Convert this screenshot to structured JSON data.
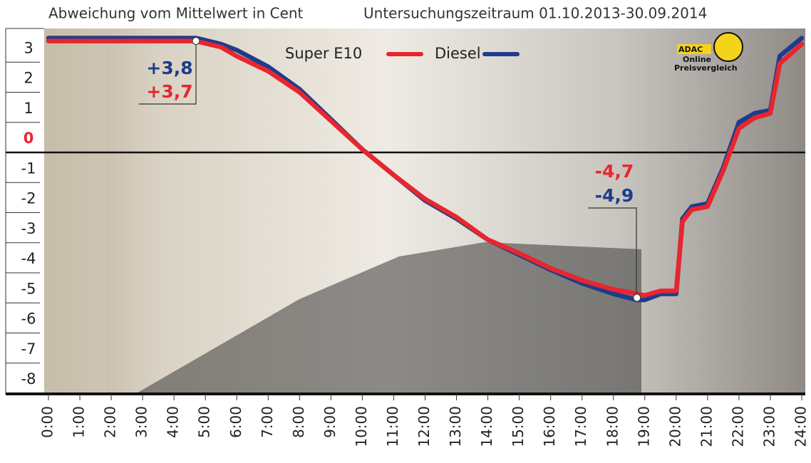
{
  "chart_data": {
    "type": "line",
    "title": "Abweichung vom Mittelwert in Cent",
    "subtitle": "Untersuchungszeitraum 01.10.2013-30.09.2014",
    "x": [
      0,
      4.7,
      5.5,
      6,
      7,
      8,
      9,
      10,
      11,
      12,
      13,
      14,
      15,
      16,
      17,
      18,
      18.75,
      19,
      19.5,
      20,
      20.2,
      20.5,
      21,
      21.5,
      22,
      22.5,
      23,
      23.3,
      24
    ],
    "series": [
      {
        "name": "Diesel",
        "color": "#1f3c8c",
        "values": [
          3.8,
          3.8,
          3.6,
          3.4,
          2.85,
          2.1,
          1.1,
          0.1,
          -0.75,
          -1.6,
          -2.2,
          -2.9,
          -3.4,
          -3.9,
          -4.35,
          -4.7,
          -4.9,
          -4.9,
          -4.7,
          -4.7,
          -2.2,
          -1.8,
          -1.7,
          -0.5,
          1.0,
          1.3,
          1.4,
          3.2,
          3.8
        ]
      },
      {
        "name": "Super E10",
        "color": "#e8262d",
        "values": [
          3.7,
          3.7,
          3.5,
          3.2,
          2.7,
          2.0,
          1.05,
          0.1,
          -0.75,
          -1.55,
          -2.15,
          -2.9,
          -3.35,
          -3.85,
          -4.25,
          -4.55,
          -4.7,
          -4.75,
          -4.6,
          -4.6,
          -2.3,
          -1.9,
          -1.8,
          -0.6,
          0.8,
          1.15,
          1.3,
          2.95,
          3.6
        ]
      }
    ],
    "legend_order": [
      1,
      0
    ],
    "annotations": [
      {
        "text": "+3,8",
        "color": "#1f3c8c"
      },
      {
        "text": "+3,7",
        "color": "#e8262d"
      },
      {
        "text": "-4,7",
        "color": "#e8262d"
      },
      {
        "text": "-4,9",
        "color": "#1f3c8c"
      }
    ],
    "xlim": [
      0,
      24
    ],
    "xticks": [
      {
        "value": 0,
        "label": "0:00"
      },
      {
        "value": 1,
        "label": "1:00"
      },
      {
        "value": 2,
        "label": "2:00"
      },
      {
        "value": 3,
        "label": "3:00"
      },
      {
        "value": 4,
        "label": "4:00"
      },
      {
        "value": 5,
        "label": "5:00"
      },
      {
        "value": 6,
        "label": "6:00"
      },
      {
        "value": 7,
        "label": "7:00"
      },
      {
        "value": 8,
        "label": "8:00"
      },
      {
        "value": 9,
        "label": "9:00"
      },
      {
        "value": 10,
        "label": "10:00"
      },
      {
        "value": 11,
        "label": "11:00"
      },
      {
        "value": 12,
        "label": "12:00"
      },
      {
        "value": 13,
        "label": "13:00"
      },
      {
        "value": 14,
        "label": "14:00"
      },
      {
        "value": 15,
        "label": "15:00"
      },
      {
        "value": 16,
        "label": "16:00"
      },
      {
        "value": 17,
        "label": "17:00"
      },
      {
        "value": 18,
        "label": "18:00"
      },
      {
        "value": 19,
        "label": "19:00"
      },
      {
        "value": 20,
        "label": "20:00"
      },
      {
        "value": 21,
        "label": "21:00"
      },
      {
        "value": 22,
        "label": "22:00"
      },
      {
        "value": 23,
        "label": "23:00"
      },
      {
        "value": 24,
        "label": "24:00"
      }
    ],
    "ylim": [
      -8,
      4
    ],
    "yticks": [
      -8,
      -7,
      -6,
      -5,
      -4,
      -3,
      -2,
      -1,
      0,
      1,
      2,
      3
    ]
  },
  "logo": {
    "lines": [
      "ADAC",
      "Online",
      "Preisvergleich"
    ]
  }
}
